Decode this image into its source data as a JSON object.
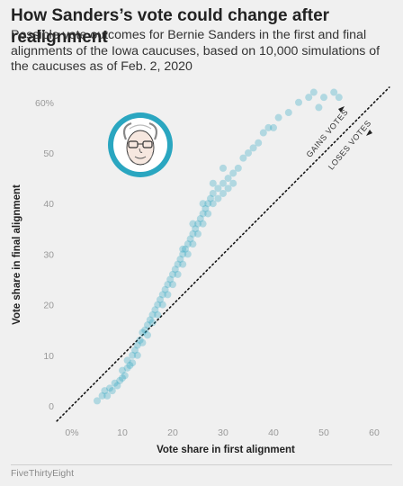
{
  "header": {
    "title": "How Sanders’s vote could change after realignment",
    "subtitle": "Possible vote outcomes for Bernie Sanders in the first and final alignments of the Iowa caucuses, based on 10,000 simulations of the caucuses as of Feb. 2, 2020"
  },
  "footer": {
    "source": "FiveThirtyEight"
  },
  "colors": {
    "point": "#2aa6c0",
    "background": "#f0f0f0",
    "portrait_ring": "#2aa6c0"
  },
  "portrait": {
    "icon": "bernie-sanders-portrait-icon"
  },
  "chart_data": {
    "type": "scatter",
    "title": "How Sanders’s vote could change after realignment",
    "xlabel": "Vote share in first alignment",
    "ylabel": "Vote share in final alignment",
    "xlim": [
      0,
      62
    ],
    "ylim": [
      0,
      63
    ],
    "x_ticks": [
      "0%",
      "10",
      "20",
      "30",
      "40",
      "50",
      "60"
    ],
    "y_ticks": [
      "0",
      "10",
      "20",
      "30",
      "40",
      "50",
      "60%"
    ],
    "grid": false,
    "reference_line": {
      "type": "y=x",
      "style": "dotted"
    },
    "annotations": [
      {
        "text": "GAINS VOTES",
        "direction": "up"
      },
      {
        "text": "LOSES VOTES",
        "direction": "down"
      }
    ],
    "series": [
      {
        "values": [
          [
            5,
            1
          ],
          [
            6,
            2
          ],
          [
            6.5,
            3
          ],
          [
            7,
            2
          ],
          [
            7.5,
            3.5
          ],
          [
            8,
            3
          ],
          [
            8.5,
            4.5
          ],
          [
            9,
            4
          ],
          [
            9.5,
            5
          ],
          [
            10,
            5.5
          ],
          [
            10,
            7
          ],
          [
            10.5,
            6
          ],
          [
            11,
            7.5
          ],
          [
            11,
            9
          ],
          [
            11.5,
            8
          ],
          [
            12,
            10
          ],
          [
            12,
            8.5
          ],
          [
            12.5,
            11
          ],
          [
            13,
            12
          ],
          [
            13,
            10
          ],
          [
            13.5,
            13
          ],
          [
            14,
            14.5
          ],
          [
            14,
            12.5
          ],
          [
            14.5,
            15
          ],
          [
            15,
            16
          ],
          [
            15,
            14
          ],
          [
            15.5,
            17
          ],
          [
            16,
            18
          ],
          [
            16,
            16.5
          ],
          [
            16.5,
            19
          ],
          [
            17,
            20
          ],
          [
            17,
            18
          ],
          [
            17.5,
            21
          ],
          [
            18,
            22
          ],
          [
            18,
            20
          ],
          [
            18.5,
            23
          ],
          [
            19,
            24
          ],
          [
            19,
            22
          ],
          [
            19.5,
            25
          ],
          [
            20,
            26
          ],
          [
            20,
            24
          ],
          [
            20.5,
            27
          ],
          [
            21,
            28
          ],
          [
            21,
            26
          ],
          [
            21.5,
            29
          ],
          [
            22,
            30
          ],
          [
            22,
            28
          ],
          [
            22.5,
            31
          ],
          [
            23,
            32
          ],
          [
            23,
            30
          ],
          [
            23.5,
            33
          ],
          [
            24,
            34
          ],
          [
            24,
            32
          ],
          [
            24.5,
            35
          ],
          [
            25,
            36
          ],
          [
            25,
            34
          ],
          [
            25.5,
            37
          ],
          [
            26,
            38
          ],
          [
            26,
            36
          ],
          [
            26.5,
            39
          ],
          [
            27,
            40
          ],
          [
            27,
            38
          ],
          [
            27.5,
            41
          ],
          [
            28,
            42
          ],
          [
            28,
            40
          ],
          [
            29,
            43
          ],
          [
            29,
            41
          ],
          [
            30,
            44
          ],
          [
            30,
            42
          ],
          [
            31,
            45
          ],
          [
            31,
            43
          ],
          [
            32,
            46
          ],
          [
            32,
            44
          ],
          [
            33,
            47
          ],
          [
            34,
            49
          ],
          [
            35,
            50
          ],
          [
            36,
            51
          ],
          [
            37,
            52
          ],
          [
            38,
            54
          ],
          [
            39,
            55
          ],
          [
            40,
            55
          ],
          [
            41,
            57
          ],
          [
            43,
            58
          ],
          [
            45,
            60
          ],
          [
            47,
            61
          ],
          [
            48,
            62
          ],
          [
            50,
            61
          ],
          [
            52,
            62
          ],
          [
            53,
            61
          ],
          [
            49,
            59
          ],
          [
            22,
            31
          ],
          [
            24,
            36
          ],
          [
            26,
            40
          ],
          [
            28,
            44
          ],
          [
            30,
            47
          ]
        ]
      }
    ]
  }
}
